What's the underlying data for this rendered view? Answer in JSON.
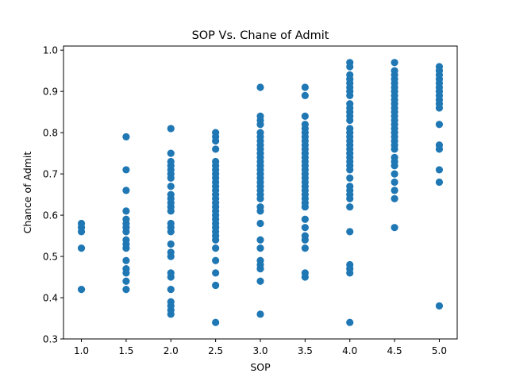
{
  "chart_data": {
    "type": "scatter",
    "title": "SOP Vs. Chane of Admit",
    "xlabel": "SOP",
    "ylabel": "Chance of Admit",
    "xlim": [
      0.8,
      5.2
    ],
    "ylim": [
      0.3,
      1.01
    ],
    "xticks": [
      "1.0",
      "1.5",
      "2.0",
      "2.5",
      "3.0",
      "3.5",
      "4.0",
      "4.5",
      "5.0"
    ],
    "yticks": [
      "0.3",
      "0.4",
      "0.5",
      "0.6",
      "0.7",
      "0.8",
      "0.9",
      "1.0"
    ],
    "grid": false,
    "marker_color": "#1f77b4",
    "series": [
      {
        "points": [
          [
            1.0,
            0.42
          ],
          [
            1.0,
            0.52
          ],
          [
            1.0,
            0.56
          ],
          [
            1.0,
            0.57
          ],
          [
            1.0,
            0.58
          ],
          [
            1.5,
            0.42
          ],
          [
            1.5,
            0.44
          ],
          [
            1.5,
            0.46
          ],
          [
            1.5,
            0.47
          ],
          [
            1.5,
            0.49
          ],
          [
            1.5,
            0.52
          ],
          [
            1.5,
            0.53
          ],
          [
            1.5,
            0.54
          ],
          [
            1.5,
            0.56
          ],
          [
            1.5,
            0.57
          ],
          [
            1.5,
            0.58
          ],
          [
            1.5,
            0.59
          ],
          [
            1.5,
            0.61
          ],
          [
            1.5,
            0.66
          ],
          [
            1.5,
            0.71
          ],
          [
            1.5,
            0.79
          ],
          [
            2.0,
            0.36
          ],
          [
            2.0,
            0.37
          ],
          [
            2.0,
            0.38
          ],
          [
            2.0,
            0.39
          ],
          [
            2.0,
            0.42
          ],
          [
            2.0,
            0.45
          ],
          [
            2.0,
            0.46
          ],
          [
            2.0,
            0.5
          ],
          [
            2.0,
            0.51
          ],
          [
            2.0,
            0.53
          ],
          [
            2.0,
            0.56
          ],
          [
            2.0,
            0.57
          ],
          [
            2.0,
            0.58
          ],
          [
            2.0,
            0.61
          ],
          [
            2.0,
            0.62
          ],
          [
            2.0,
            0.63
          ],
          [
            2.0,
            0.64
          ],
          [
            2.0,
            0.65
          ],
          [
            2.0,
            0.67
          ],
          [
            2.0,
            0.69
          ],
          [
            2.0,
            0.7
          ],
          [
            2.0,
            0.71
          ],
          [
            2.0,
            0.72
          ],
          [
            2.0,
            0.73
          ],
          [
            2.0,
            0.75
          ],
          [
            2.0,
            0.81
          ],
          [
            2.5,
            0.34
          ],
          [
            2.5,
            0.43
          ],
          [
            2.5,
            0.46
          ],
          [
            2.5,
            0.49
          ],
          [
            2.5,
            0.52
          ],
          [
            2.5,
            0.54
          ],
          [
            2.5,
            0.55
          ],
          [
            2.5,
            0.56
          ],
          [
            2.5,
            0.57
          ],
          [
            2.5,
            0.58
          ],
          [
            2.5,
            0.59
          ],
          [
            2.5,
            0.6
          ],
          [
            2.5,
            0.61
          ],
          [
            2.5,
            0.62
          ],
          [
            2.5,
            0.63
          ],
          [
            2.5,
            0.64
          ],
          [
            2.5,
            0.65
          ],
          [
            2.5,
            0.66
          ],
          [
            2.5,
            0.67
          ],
          [
            2.5,
            0.68
          ],
          [
            2.5,
            0.69
          ],
          [
            2.5,
            0.7
          ],
          [
            2.5,
            0.71
          ],
          [
            2.5,
            0.72
          ],
          [
            2.5,
            0.73
          ],
          [
            2.5,
            0.76
          ],
          [
            2.5,
            0.78
          ],
          [
            2.5,
            0.79
          ],
          [
            2.5,
            0.8
          ],
          [
            3.0,
            0.36
          ],
          [
            3.0,
            0.44
          ],
          [
            3.0,
            0.47
          ],
          [
            3.0,
            0.48
          ],
          [
            3.0,
            0.49
          ],
          [
            3.0,
            0.52
          ],
          [
            3.0,
            0.54
          ],
          [
            3.0,
            0.58
          ],
          [
            3.0,
            0.61
          ],
          [
            3.0,
            0.62
          ],
          [
            3.0,
            0.64
          ],
          [
            3.0,
            0.65
          ],
          [
            3.0,
            0.66
          ],
          [
            3.0,
            0.67
          ],
          [
            3.0,
            0.68
          ],
          [
            3.0,
            0.69
          ],
          [
            3.0,
            0.7
          ],
          [
            3.0,
            0.71
          ],
          [
            3.0,
            0.72
          ],
          [
            3.0,
            0.73
          ],
          [
            3.0,
            0.74
          ],
          [
            3.0,
            0.75
          ],
          [
            3.0,
            0.76
          ],
          [
            3.0,
            0.77
          ],
          [
            3.0,
            0.78
          ],
          [
            3.0,
            0.79
          ],
          [
            3.0,
            0.8
          ],
          [
            3.0,
            0.82
          ],
          [
            3.0,
            0.83
          ],
          [
            3.0,
            0.84
          ],
          [
            3.0,
            0.91
          ],
          [
            3.5,
            0.45
          ],
          [
            3.5,
            0.46
          ],
          [
            3.5,
            0.52
          ],
          [
            3.5,
            0.54
          ],
          [
            3.5,
            0.55
          ],
          [
            3.5,
            0.57
          ],
          [
            3.5,
            0.59
          ],
          [
            3.5,
            0.62
          ],
          [
            3.5,
            0.63
          ],
          [
            3.5,
            0.64
          ],
          [
            3.5,
            0.65
          ],
          [
            3.5,
            0.66
          ],
          [
            3.5,
            0.67
          ],
          [
            3.5,
            0.68
          ],
          [
            3.5,
            0.69
          ],
          [
            3.5,
            0.7
          ],
          [
            3.5,
            0.71
          ],
          [
            3.5,
            0.72
          ],
          [
            3.5,
            0.73
          ],
          [
            3.5,
            0.74
          ],
          [
            3.5,
            0.75
          ],
          [
            3.5,
            0.76
          ],
          [
            3.5,
            0.77
          ],
          [
            3.5,
            0.78
          ],
          [
            3.5,
            0.79
          ],
          [
            3.5,
            0.8
          ],
          [
            3.5,
            0.81
          ],
          [
            3.5,
            0.82
          ],
          [
            3.5,
            0.84
          ],
          [
            3.5,
            0.89
          ],
          [
            3.5,
            0.91
          ],
          [
            4.0,
            0.34
          ],
          [
            4.0,
            0.46
          ],
          [
            4.0,
            0.47
          ],
          [
            4.0,
            0.48
          ],
          [
            4.0,
            0.56
          ],
          [
            4.0,
            0.62
          ],
          [
            4.0,
            0.64
          ],
          [
            4.0,
            0.65
          ],
          [
            4.0,
            0.66
          ],
          [
            4.0,
            0.67
          ],
          [
            4.0,
            0.69
          ],
          [
            4.0,
            0.71
          ],
          [
            4.0,
            0.72
          ],
          [
            4.0,
            0.73
          ],
          [
            4.0,
            0.74
          ],
          [
            4.0,
            0.75
          ],
          [
            4.0,
            0.76
          ],
          [
            4.0,
            0.77
          ],
          [
            4.0,
            0.78
          ],
          [
            4.0,
            0.79
          ],
          [
            4.0,
            0.8
          ],
          [
            4.0,
            0.81
          ],
          [
            4.0,
            0.83
          ],
          [
            4.0,
            0.84
          ],
          [
            4.0,
            0.85
          ],
          [
            4.0,
            0.86
          ],
          [
            4.0,
            0.87
          ],
          [
            4.0,
            0.89
          ],
          [
            4.0,
            0.9
          ],
          [
            4.0,
            0.91
          ],
          [
            4.0,
            0.92
          ],
          [
            4.0,
            0.93
          ],
          [
            4.0,
            0.94
          ],
          [
            4.0,
            0.96
          ],
          [
            4.0,
            0.97
          ],
          [
            4.5,
            0.57
          ],
          [
            4.5,
            0.64
          ],
          [
            4.5,
            0.66
          ],
          [
            4.5,
            0.68
          ],
          [
            4.5,
            0.7
          ],
          [
            4.5,
            0.72
          ],
          [
            4.5,
            0.73
          ],
          [
            4.5,
            0.74
          ],
          [
            4.5,
            0.76
          ],
          [
            4.5,
            0.77
          ],
          [
            4.5,
            0.78
          ],
          [
            4.5,
            0.79
          ],
          [
            4.5,
            0.8
          ],
          [
            4.5,
            0.81
          ],
          [
            4.5,
            0.82
          ],
          [
            4.5,
            0.83
          ],
          [
            4.5,
            0.84
          ],
          [
            4.5,
            0.85
          ],
          [
            4.5,
            0.86
          ],
          [
            4.5,
            0.87
          ],
          [
            4.5,
            0.88
          ],
          [
            4.5,
            0.89
          ],
          [
            4.5,
            0.9
          ],
          [
            4.5,
            0.91
          ],
          [
            4.5,
            0.92
          ],
          [
            4.5,
            0.93
          ],
          [
            4.5,
            0.94
          ],
          [
            4.5,
            0.95
          ],
          [
            4.5,
            0.97
          ],
          [
            5.0,
            0.38
          ],
          [
            5.0,
            0.68
          ],
          [
            5.0,
            0.71
          ],
          [
            5.0,
            0.76
          ],
          [
            5.0,
            0.77
          ],
          [
            5.0,
            0.82
          ],
          [
            5.0,
            0.86
          ],
          [
            5.0,
            0.87
          ],
          [
            5.0,
            0.88
          ],
          [
            5.0,
            0.89
          ],
          [
            5.0,
            0.9
          ],
          [
            5.0,
            0.91
          ],
          [
            5.0,
            0.92
          ],
          [
            5.0,
            0.93
          ],
          [
            5.0,
            0.94
          ],
          [
            5.0,
            0.95
          ],
          [
            5.0,
            0.96
          ]
        ]
      }
    ]
  }
}
